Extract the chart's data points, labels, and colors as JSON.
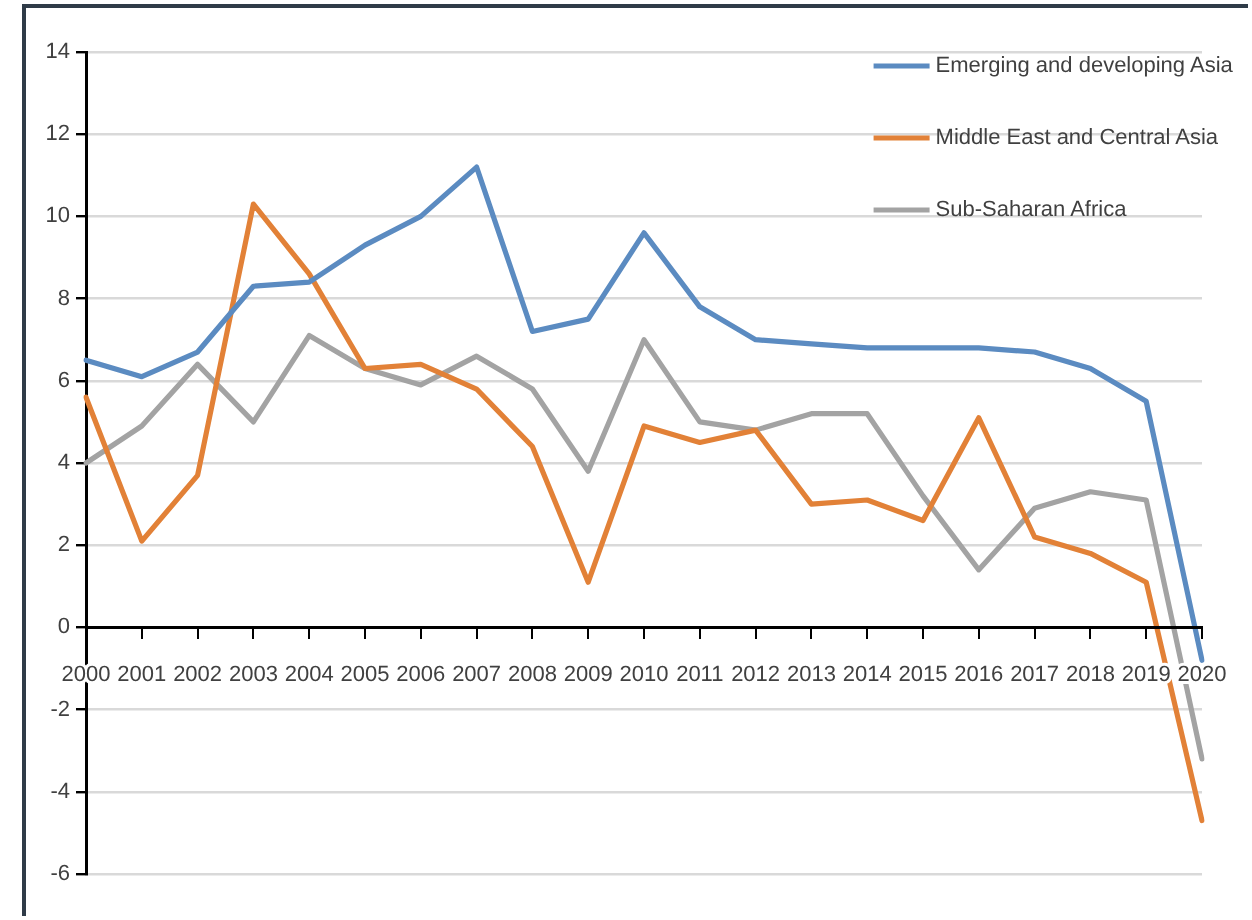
{
  "chart_data": {
    "type": "line",
    "categories": [
      "2000",
      "2001",
      "2002",
      "2003",
      "2004",
      "2005",
      "2006",
      "2007",
      "2008",
      "2009",
      "2010",
      "2011",
      "2012",
      "2013",
      "2014",
      "2015",
      "2016",
      "2017",
      "2018",
      "2019",
      "2020"
    ],
    "series": [
      {
        "name": "Emerging and developing Asia",
        "color": "#5b8bc1",
        "values": [
          6.5,
          6.1,
          6.7,
          8.3,
          8.4,
          9.3,
          10.0,
          11.2,
          7.2,
          7.5,
          9.6,
          7.8,
          7.0,
          6.9,
          6.8,
          6.8,
          6.8,
          6.7,
          6.3,
          5.5,
          -0.8
        ]
      },
      {
        "name": "Middle East and Central Asia",
        "color": "#e28137",
        "values": [
          5.6,
          2.1,
          3.7,
          10.3,
          8.6,
          6.3,
          6.4,
          5.8,
          4.4,
          1.1,
          4.9,
          4.5,
          4.8,
          3.0,
          3.1,
          2.6,
          5.1,
          2.2,
          1.8,
          1.1,
          -4.7
        ]
      },
      {
        "name": "Sub-Saharan Africa",
        "color": "#a3a3a3",
        "values": [
          4.0,
          4.9,
          6.4,
          5.0,
          7.1,
          6.3,
          5.9,
          6.6,
          5.8,
          3.8,
          7.0,
          5.0,
          4.8,
          5.2,
          5.2,
          3.2,
          1.4,
          2.9,
          3.3,
          3.1,
          -3.2
        ]
      }
    ],
    "ylim": [
      -6,
      14
    ],
    "yticks": [
      -6,
      -4,
      -2,
      0,
      2,
      4,
      6,
      8,
      10,
      12,
      14
    ],
    "grid": "y",
    "legend": "top right",
    "marker": "none",
    "line_style": "solid"
  }
}
